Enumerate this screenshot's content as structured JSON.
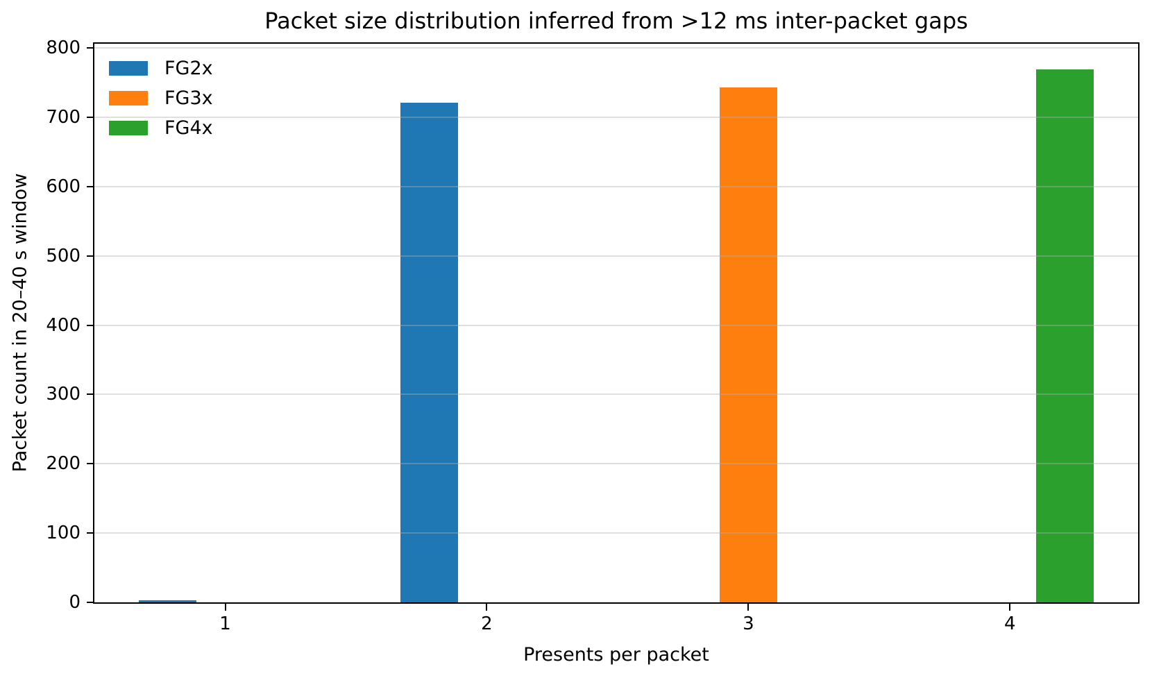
{
  "chart_data": {
    "type": "bar",
    "title": "Packet size distribution inferred from >12 ms inter-packet gaps",
    "xlabel": "Presents per packet",
    "ylabel": "Packet count in 20–40 s window",
    "categories": [
      1,
      2,
      3,
      4
    ],
    "series": [
      {
        "name": "FG2x",
        "color": "#1f77b4",
        "values": [
          3,
          721,
          0,
          0
        ]
      },
      {
        "name": "FG3x",
        "color": "#ff7f0e",
        "values": [
          0,
          0,
          743,
          0
        ]
      },
      {
        "name": "FG4x",
        "color": "#2ca02c",
        "values": [
          0,
          0,
          0,
          769
        ]
      }
    ],
    "axes": {
      "xlim": [
        0.5,
        4.49
      ],
      "ylim": [
        0,
        806
      ],
      "x_ticks": [
        1,
        2,
        3,
        4
      ],
      "y_ticks": [
        0,
        100,
        200,
        300,
        400,
        500,
        600,
        700,
        800
      ]
    },
    "bar_width_units": 0.22,
    "series_offsets_units": [
      -0.22,
      0,
      0.21
    ],
    "grid": "horizontal",
    "legend_position": "upper-left",
    "legend_frame": false,
    "style": {
      "grid_color": "rgba(176,176,176,0.4)",
      "spine_color": "#000000",
      "tick_color": "#000000",
      "background": "#ffffff"
    }
  }
}
